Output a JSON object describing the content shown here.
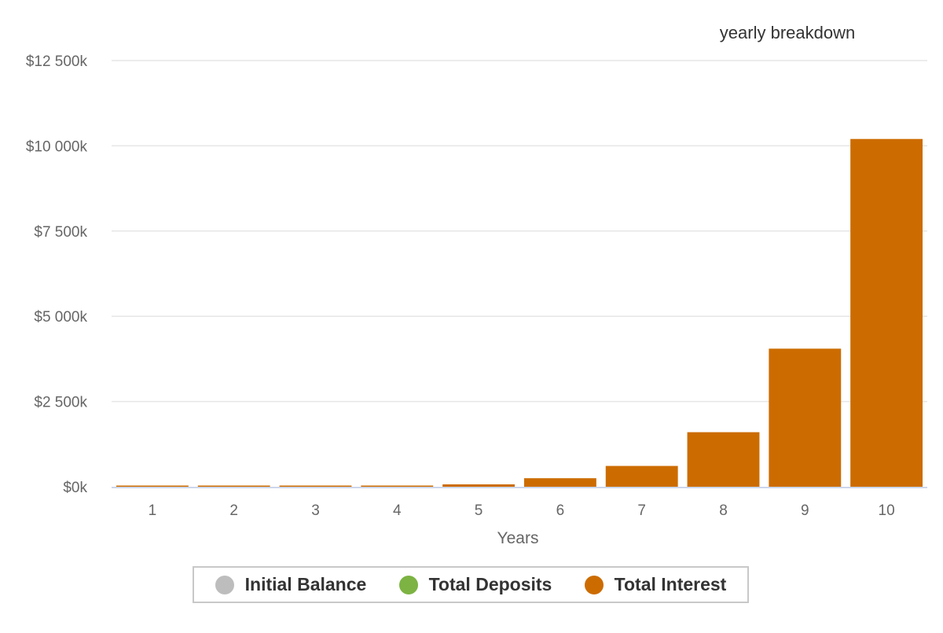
{
  "chart_data": {
    "type": "bar",
    "title": "yearly breakdown",
    "xlabel": "Years",
    "ylabel": "",
    "categories": [
      "1",
      "2",
      "3",
      "4",
      "5",
      "6",
      "7",
      "8",
      "9",
      "10"
    ],
    "ylim": [
      0,
      12500
    ],
    "yticks": [
      0,
      2500,
      5000,
      7500,
      10000,
      12500
    ],
    "ytick_labels": [
      "$0k",
      "$2 500k",
      "$5 000k",
      "$7 500k",
      "$10 000k",
      "$12 500k"
    ],
    "grid": true,
    "legend_position": "bottom-center",
    "series": [
      {
        "name": "Initial Balance",
        "color": "#bdbdbd",
        "values": [
          0,
          0,
          0,
          0,
          0,
          0,
          0,
          0,
          0,
          0
        ]
      },
      {
        "name": "Total Deposits",
        "color": "#7cb342",
        "values": [
          0,
          0,
          0,
          0,
          0,
          0,
          0,
          0,
          0,
          0
        ]
      },
      {
        "name": "Total Interest",
        "color": "#cc6c00",
        "values": [
          0.3,
          2,
          8,
          25,
          70,
          250,
          610,
          1600,
          4050,
          10200
        ]
      }
    ]
  }
}
